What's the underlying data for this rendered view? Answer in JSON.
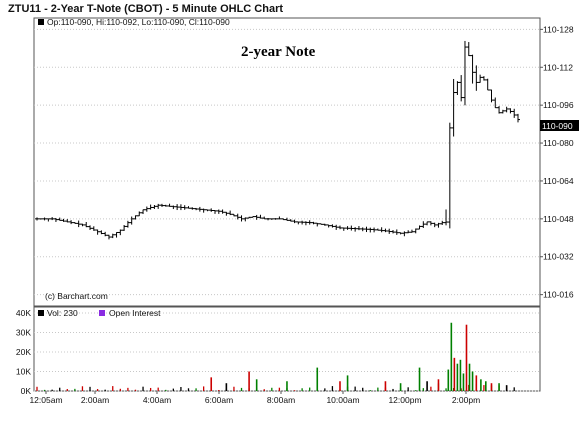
{
  "window": {
    "title": "ZTU11 - 2-Year T-Note (CBOT) - 5 Minute OHLC Chart"
  },
  "legend": {
    "ohlc": "Op:110-090, Hi:110-092, Lo:110-090, Cl:110-090",
    "volume": "Vol: 230",
    "open_interest": "Open Interest"
  },
  "annotations": {
    "overlay": "2-year Note",
    "copyright": "(c) Barchart.com"
  },
  "current_price_label": "110-090",
  "colors": {
    "up_volume": "#008000",
    "down_volume": "#cc0000",
    "neutral_volume": "#000000",
    "open_interest_swatch": "#8a2be2",
    "price_bar": "#000000"
  },
  "chart_data": [
    {
      "type": "ohlc",
      "title": "2-year Note",
      "xlabel": "",
      "ylabel": "",
      "x_ticks": [
        "12:05am",
        "2:00am",
        "4:00am",
        "6:00am",
        "8:00am",
        "10:00am",
        "12:00pm",
        "2:00pm"
      ],
      "y_ticks": [
        "110-128",
        "110-112",
        "110-096",
        "110-080",
        "110-064",
        "110-048",
        "110-032",
        "110-016"
      ],
      "y_tick_values": [
        110.4,
        110.35,
        110.3,
        110.25,
        110.2,
        110.15,
        110.1,
        110.05
      ],
      "ylim": [
        110.035,
        110.415
      ],
      "grid": true,
      "last_value": 110.281,
      "close_path": [
        [
          0,
          110.15
        ],
        [
          4,
          110.15
        ],
        [
          8,
          110.146
        ],
        [
          12,
          110.142
        ],
        [
          16,
          110.133
        ],
        [
          19,
          110.126
        ],
        [
          22,
          110.135
        ],
        [
          25,
          110.15
        ],
        [
          28,
          110.162
        ],
        [
          32,
          110.168
        ],
        [
          36,
          110.166
        ],
        [
          40,
          110.164
        ],
        [
          44,
          110.162
        ],
        [
          48,
          110.16
        ],
        [
          51,
          110.156
        ],
        [
          54,
          110.15
        ],
        [
          57,
          110.153
        ],
        [
          60,
          110.15
        ],
        [
          64,
          110.15
        ],
        [
          68,
          110.146
        ],
        [
          72,
          110.145
        ],
        [
          76,
          110.142
        ],
        [
          80,
          110.138
        ],
        [
          84,
          110.137
        ],
        [
          88,
          110.136
        ],
        [
          92,
          110.134
        ],
        [
          96,
          110.131
        ],
        [
          99,
          110.133
        ],
        [
          101,
          110.14
        ],
        [
          103,
          110.146
        ],
        [
          105,
          110.142
        ],
        [
          107,
          110.145
        ],
        [
          108.3,
          110.146
        ],
        [
          109,
          110.27
        ],
        [
          110.5,
          110.34
        ],
        [
          112,
          110.31
        ],
        [
          113.2,
          110.39
        ],
        [
          114.5,
          110.35
        ],
        [
          116,
          110.33
        ],
        [
          117.5,
          110.34
        ],
        [
          119,
          110.32
        ],
        [
          120.5,
          110.3
        ],
        [
          122,
          110.29
        ],
        [
          124,
          110.295
        ],
        [
          125.5,
          110.29
        ],
        [
          127,
          110.281
        ]
      ],
      "volume": {
        "ylim": [
          0,
          40000
        ],
        "y_ticks": [
          "40K",
          "30K",
          "20K",
          "10K",
          "0K"
        ],
        "y_tick_values": [
          40000,
          30000,
          20000,
          10000,
          0
        ],
        "notable_bars": [
          {
            "x": 46,
            "value": 7000,
            "dir": "down"
          },
          {
            "x": 50,
            "value": 4000,
            "dir": "neutral"
          },
          {
            "x": 56,
            "value": 10000,
            "dir": "down"
          },
          {
            "x": 58,
            "value": 6000,
            "dir": "up"
          },
          {
            "x": 66,
            "value": 5000,
            "dir": "up"
          },
          {
            "x": 74,
            "value": 12000,
            "dir": "up"
          },
          {
            "x": 80,
            "value": 5000,
            "dir": "down"
          },
          {
            "x": 82,
            "value": 8000,
            "dir": "up"
          },
          {
            "x": 92,
            "value": 5000,
            "dir": "down"
          },
          {
            "x": 96,
            "value": 4000,
            "dir": "up"
          },
          {
            "x": 101,
            "value": 12000,
            "dir": "up"
          },
          {
            "x": 103,
            "value": 5000,
            "dir": "neutral"
          },
          {
            "x": 106,
            "value": 6000,
            "dir": "down"
          },
          {
            "x": 108.6,
            "value": 11000,
            "dir": "up"
          },
          {
            "x": 109.4,
            "value": 35000,
            "dir": "up"
          },
          {
            "x": 110.2,
            "value": 17000,
            "dir": "down"
          },
          {
            "x": 111,
            "value": 14000,
            "dir": "up"
          },
          {
            "x": 111.8,
            "value": 16000,
            "dir": "up"
          },
          {
            "x": 112.6,
            "value": 9000,
            "dir": "up"
          },
          {
            "x": 113.4,
            "value": 34000,
            "dir": "down"
          },
          {
            "x": 114.2,
            "value": 14000,
            "dir": "up"
          },
          {
            "x": 115,
            "value": 10000,
            "dir": "up"
          },
          {
            "x": 116,
            "value": 8000,
            "dir": "down"
          },
          {
            "x": 117.2,
            "value": 6000,
            "dir": "up"
          },
          {
            "x": 118.5,
            "value": 5000,
            "dir": "up"
          },
          {
            "x": 120,
            "value": 4000,
            "dir": "down"
          },
          {
            "x": 122,
            "value": 4000,
            "dir": "up"
          },
          {
            "x": 124,
            "value": 3000,
            "dir": "neutral"
          }
        ]
      }
    }
  ]
}
